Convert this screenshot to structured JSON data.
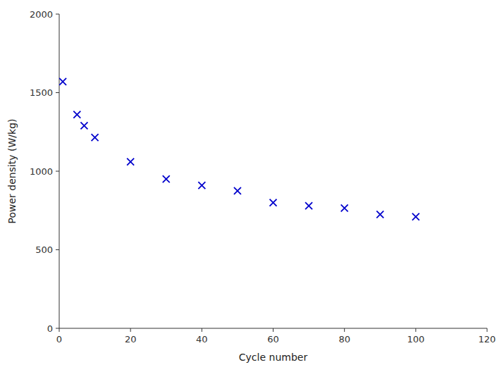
{
  "chart_data": {
    "type": "scatter",
    "x": [
      1,
      5,
      7,
      10,
      20,
      30,
      40,
      50,
      60,
      70,
      80,
      90,
      100
    ],
    "values": [
      1570,
      1360,
      1290,
      1215,
      1060,
      950,
      910,
      875,
      800,
      780,
      765,
      725,
      710
    ],
    "marker": "x",
    "color": "#0000cc",
    "xlabel": "Cycle number",
    "ylabel": "Power density (W/kg)",
    "xlim": [
      0,
      120
    ],
    "ylim": [
      0,
      2000
    ],
    "xticks": [
      0,
      20,
      40,
      60,
      80,
      100,
      120
    ],
    "yticks": [
      0,
      500,
      1000,
      1500,
      2000
    ],
    "grid": false
  }
}
